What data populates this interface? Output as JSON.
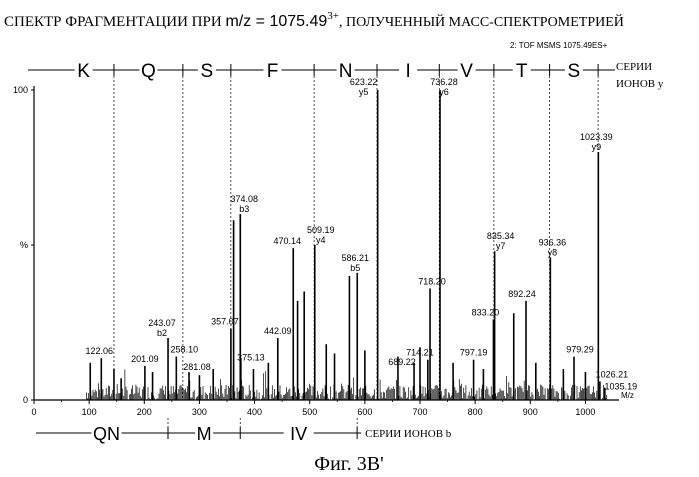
{
  "chart_data": {
    "type": "bar",
    "title": {
      "prefix": "СПЕКТР ФРАГМЕНТАЦИИ ПРИ ",
      "mz_label": "m/z",
      "mz_value": " = 1075.49",
      "charge": "3+",
      "suffix": ", ПОЛУЧЕННЫЙ МАСС-СПЕКТРОМЕТРИЕЙ"
    },
    "instrument_label": "2: TOF MSMS 1075.49ES+",
    "ylabel": "%",
    "xlabel": "M/z",
    "xlim": [
      0,
      1050
    ],
    "ylim": [
      0,
      100
    ],
    "x_ticks": [
      0,
      100,
      200,
      300,
      400,
      500,
      600,
      700,
      800,
      900,
      1000
    ],
    "y_tick_labels": [
      {
        "value": 100,
        "label": "100"
      },
      {
        "value": 50,
        "label": "%"
      },
      {
        "value": 0,
        "label": "0"
      }
    ],
    "peaks": [
      {
        "mz": 102,
        "intensity": 12
      },
      {
        "mz": 122.06,
        "intensity": 13.5,
        "label": "122.06"
      },
      {
        "mz": 145,
        "intensity": 10
      },
      {
        "mz": 158,
        "intensity": 7
      },
      {
        "mz": 201.09,
        "intensity": 11,
        "label": "201.09"
      },
      {
        "mz": 215,
        "intensity": 9
      },
      {
        "mz": 243.07,
        "intensity": 20,
        "label": "243.07",
        "ion": "b2"
      },
      {
        "mz": 258.1,
        "intensity": 14,
        "label": "258.10"
      },
      {
        "mz": 281.08,
        "intensity": 9,
        "label": "281.08"
      },
      {
        "mz": 300,
        "intensity": 8
      },
      {
        "mz": 325,
        "intensity": 10
      },
      {
        "mz": 357.07,
        "intensity": 23,
        "label": "357.07"
      },
      {
        "mz": 362,
        "intensity": 58
      },
      {
        "mz": 374.08,
        "intensity": 60,
        "label": "374.08",
        "ion": "b3"
      },
      {
        "mz": 375.13,
        "intensity": 13,
        "label": "375.13"
      },
      {
        "mz": 398,
        "intensity": 10
      },
      {
        "mz": 425,
        "intensity": 12
      },
      {
        "mz": 442.09,
        "intensity": 20,
        "label": "442.09"
      },
      {
        "mz": 470.14,
        "intensity": 49,
        "label": "470.14"
      },
      {
        "mz": 478,
        "intensity": 32
      },
      {
        "mz": 490,
        "intensity": 35
      },
      {
        "mz": 509.19,
        "intensity": 50,
        "label": "509.19",
        "ion": "y4"
      },
      {
        "mz": 530,
        "intensity": 18
      },
      {
        "mz": 545,
        "intensity": 15
      },
      {
        "mz": 572,
        "intensity": 40
      },
      {
        "mz": 586.21,
        "intensity": 41,
        "label": "586.21",
        "ion": "b5"
      },
      {
        "mz": 600,
        "intensity": 16
      },
      {
        "mz": 623.22,
        "intensity": 100,
        "label": "623.22",
        "ion": "y5"
      },
      {
        "mz": 660,
        "intensity": 14
      },
      {
        "mz": 689.22,
        "intensity": 12,
        "label": "689.22"
      },
      {
        "mz": 700,
        "intensity": 17
      },
      {
        "mz": 714.21,
        "intensity": 13,
        "label": "714.21"
      },
      {
        "mz": 718.2,
        "intensity": 36,
        "label": "718.20"
      },
      {
        "mz": 736.28,
        "intensity": 100,
        "label": "736.28",
        "ion": "y6"
      },
      {
        "mz": 760,
        "intensity": 12
      },
      {
        "mz": 797.19,
        "intensity": 13,
        "label": "797.19"
      },
      {
        "mz": 815,
        "intensity": 10
      },
      {
        "mz": 833.2,
        "intensity": 26,
        "label": "833.20"
      },
      {
        "mz": 835.34,
        "intensity": 48,
        "label": "835.34",
        "ion": "y7"
      },
      {
        "mz": 870,
        "intensity": 28
      },
      {
        "mz": 892.24,
        "intensity": 32,
        "label": "892.24"
      },
      {
        "mz": 910,
        "intensity": 12
      },
      {
        "mz": 936.36,
        "intensity": 46,
        "label": "936.36",
        "ion": "y8"
      },
      {
        "mz": 960,
        "intensity": 10
      },
      {
        "mz": 979.29,
        "intensity": 14,
        "label": "979.29"
      },
      {
        "mz": 1000,
        "intensity": 9
      },
      {
        "mz": 1023.39,
        "intensity": 80,
        "label": "1023.39",
        "ion": "y9"
      },
      {
        "mz": 1026.21,
        "intensity": 6,
        "label": "1026.21"
      },
      {
        "mz": 1035.19,
        "intensity": 4,
        "label": "1035.19"
      }
    ],
    "y_ion_series": {
      "label_lines": [
        "СЕРИИ",
        "ИОНОВ у"
      ],
      "residues": [
        "K",
        "Q",
        "S",
        "F",
        "N",
        "I",
        "V",
        "T",
        "S"
      ],
      "boundaries_mz": [
        145,
        270,
        357,
        508,
        622,
        735,
        834,
        935,
        1023
      ]
    },
    "b_ion_series": {
      "label": "СЕРИИ ИОНОВ b",
      "residues": [
        "QN",
        "M",
        "IV"
      ],
      "boundaries_mz": [
        243,
        374,
        586
      ]
    }
  },
  "figure_caption": "Фиг. 3В'"
}
